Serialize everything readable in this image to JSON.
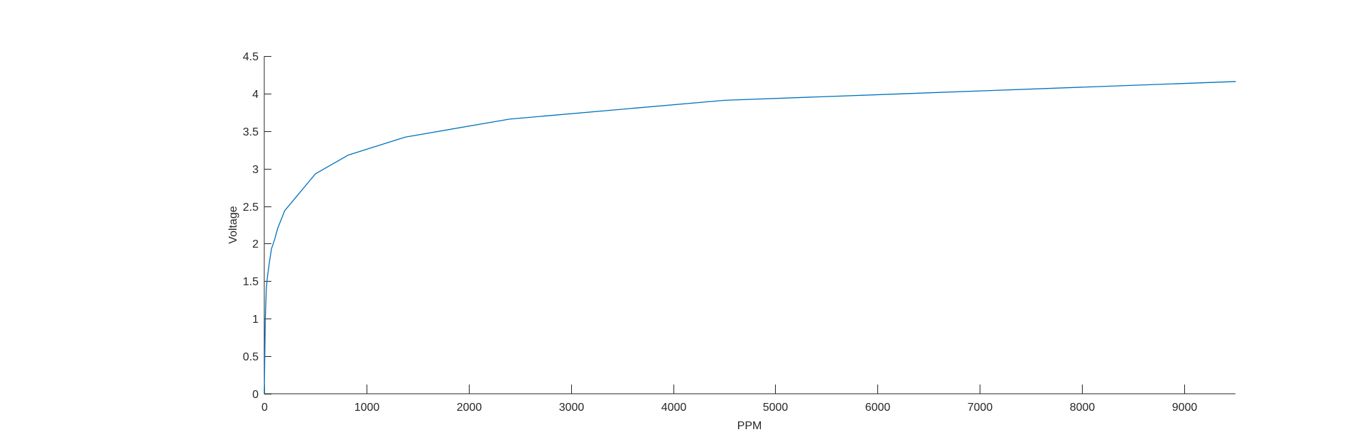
{
  "chart_data": {
    "type": "line",
    "title": "",
    "xlabel": "PPM",
    "ylabel": "Voltage",
    "xlim": [
      0,
      9500
    ],
    "ylim": [
      0,
      4.5
    ],
    "xticks": [
      0,
      1000,
      2000,
      3000,
      4000,
      5000,
      6000,
      7000,
      8000,
      9000
    ],
    "xtick_labels": [
      "0",
      "1000",
      "2000",
      "3000",
      "4000",
      "5000",
      "6000",
      "7000",
      "8000",
      "9000"
    ],
    "yticks": [
      0,
      0.5,
      1,
      1.5,
      2,
      2.5,
      3,
      3.5,
      4,
      4.5
    ],
    "ytick_labels": [
      "0",
      "0.5",
      "1",
      "1.5",
      "2",
      "2.5",
      "3",
      "3.5",
      "4",
      "4.5"
    ],
    "grid": false,
    "legend": false,
    "series": [
      {
        "color": "#0072BD",
        "x": [
          0,
          5,
          10,
          20,
          30,
          50,
          70,
          100,
          130,
          200,
          500,
          820,
          1380,
          2400,
          4500,
          9500
        ],
        "y": [
          0,
          0.5,
          1.0,
          1.4,
          1.55,
          1.75,
          1.93,
          2.05,
          2.2,
          2.44,
          2.93,
          3.18,
          3.42,
          3.66,
          3.91,
          4.16
        ]
      }
    ]
  }
}
